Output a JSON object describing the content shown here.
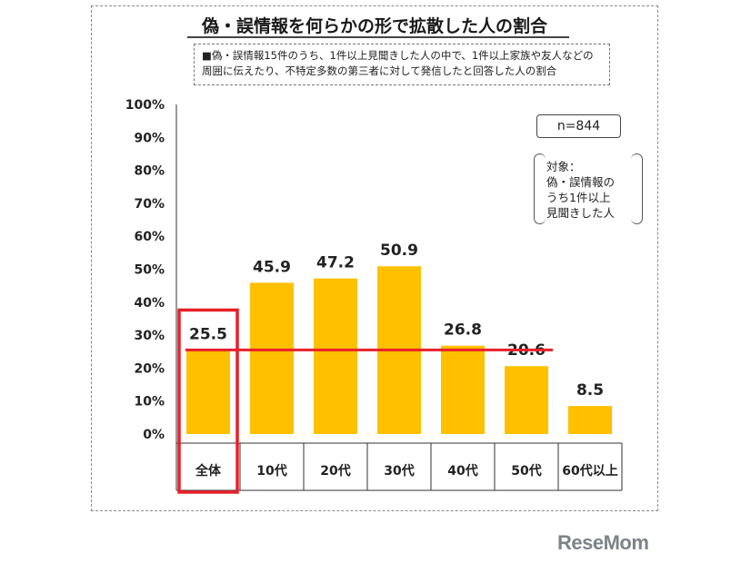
{
  "title": "偽・誤情報を何らかの形で拡散した人の割合",
  "subtitle_lines": [
    "■偽・誤情報15件のうち、1件以上見聞きした人の中で、1件以上家族や友人などの",
    "周囲に伝えたり、不特定多数の第三者に対して発信したと回答した人の割合"
  ],
  "sample_size": "n=844",
  "target_lines": [
    "対象：",
    "偽・誤情報の",
    "うち1件以上",
    "見聞きした人"
  ],
  "logo": "ReseMom",
  "colors": {
    "bar": "#FFC000",
    "reference_line": "#E8202A",
    "highlight_box": "#E8202A"
  },
  "chart_data": {
    "type": "bar",
    "categories": [
      "全体",
      "10代",
      "20代",
      "30代",
      "40代",
      "50代",
      "60代以上"
    ],
    "values": [
      25.5,
      45.9,
      47.2,
      50.9,
      26.8,
      20.6,
      8.5
    ],
    "value_labels": [
      "25.5",
      "45.9",
      "47.2",
      "50.9",
      "26.8",
      "20.6",
      "8.5"
    ],
    "ylim": [
      0,
      100
    ],
    "yticks": [
      "0%",
      "10%",
      "20%",
      "30%",
      "40%",
      "50%",
      "60%",
      "70%",
      "80%",
      "90%",
      "100%"
    ],
    "reference_line_value": 25.5,
    "highlighted_category": "全体",
    "grid": false,
    "xlabel": "",
    "ylabel": ""
  }
}
